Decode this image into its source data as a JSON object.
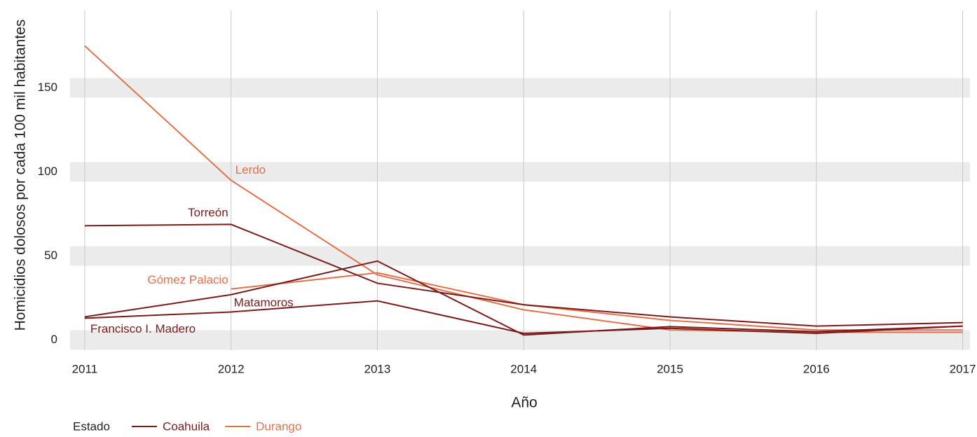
{
  "chart_data": {
    "type": "line",
    "x_label": "Año",
    "y_label": "Homicidios dolosos por cada 100 mil habitantes",
    "x": [
      2011,
      2012,
      2013,
      2014,
      2015,
      2016,
      2017
    ],
    "xlim": [
      2010.9,
      2017.05
    ],
    "xticks": [
      2011,
      2012,
      2013,
      2014,
      2015,
      2016,
      2017
    ],
    "ylim": [
      -6,
      196
    ],
    "yticks": [
      0,
      50,
      100,
      150
    ],
    "grid": true,
    "series": [
      {
        "name": "Lerdo",
        "color": "#e2714a",
        "values": [
          175,
          95,
          38.8,
          18,
          6,
          4.6,
          4.6
        ]
      },
      {
        "name": "Gómez Palacio",
        "color": "#e2714a",
        "values": [
          null,
          30.4,
          40,
          21,
          11.7,
          6,
          6
        ]
      },
      {
        "name": "Torreón",
        "color": "#7a1c1c",
        "values": [
          68,
          68.8,
          33.8,
          21,
          13.8,
          8.3,
          10.4
        ]
      },
      {
        "name": "Matamoros",
        "color": "#7a1c1c",
        "values": [
          13.8,
          27,
          47,
          3,
          8,
          5,
          8.3
        ]
      },
      {
        "name": "Francisco I. Madero",
        "color": "#7a1c1c",
        "values": [
          13,
          16.7,
          23.3,
          4,
          7,
          4,
          8.3
        ]
      }
    ],
    "legend": {
      "title": "Estado",
      "items": [
        {
          "name": "Coahuila",
          "color": "#7a1c1c"
        },
        {
          "name": "Durango",
          "color": "#e2714a"
        }
      ]
    }
  }
}
